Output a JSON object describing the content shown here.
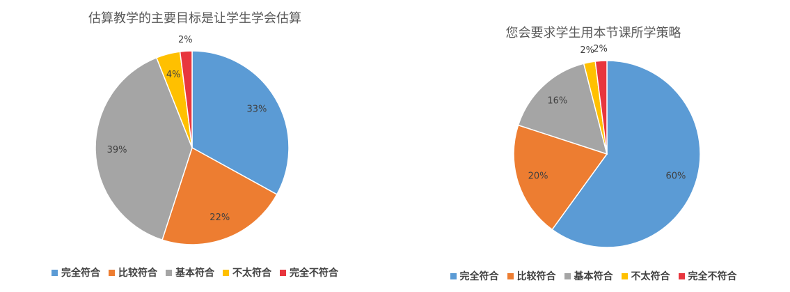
{
  "chart_data": [
    {
      "type": "pie",
      "title": "估算教学的主要目标是让学生学会估算",
      "categories": [
        "完全符合",
        "比较符合",
        "基本符合",
        "不太符合",
        "完全不符合"
      ],
      "values": [
        33,
        22,
        39,
        4,
        2
      ],
      "labels": [
        "33%",
        "22%",
        "39%",
        "4%",
        "2%"
      ],
      "colors": [
        "#5B9BD5",
        "#ED7D31",
        "#A5A5A5",
        "#FFC000",
        "#E8363E"
      ],
      "legend": "bottom"
    },
    {
      "type": "pie",
      "title": "您会要求学生用本节课所学策略",
      "categories": [
        "完全符合",
        "比较符合",
        "基本符合",
        "不太符合",
        "完全不符合"
      ],
      "values": [
        60,
        20,
        16,
        2,
        2
      ],
      "labels": [
        "60%",
        "20%",
        "16%",
        "2%",
        "2%"
      ],
      "colors": [
        "#5B9BD5",
        "#ED7D31",
        "#A5A5A5",
        "#FFC000",
        "#E8363E"
      ],
      "legend": "bottom"
    }
  ]
}
